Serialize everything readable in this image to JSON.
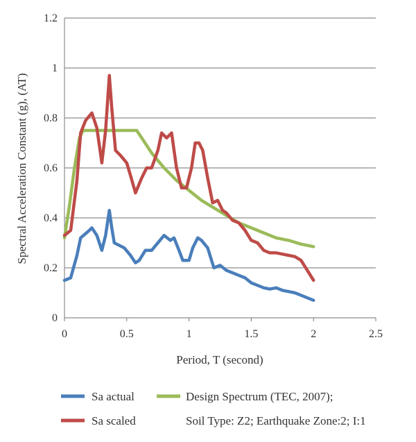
{
  "chart_data": {
    "type": "line",
    "title": "",
    "xlabel": "Period, T (second)",
    "ylabel": "Spectral Acceleration Constant (g), (AT)",
    "xlim": [
      0,
      2.5
    ],
    "ylim": [
      0,
      1.2
    ],
    "xticks": [
      0,
      0.5,
      1,
      1.5,
      2,
      2.5
    ],
    "xtick_labels": [
      "0",
      "0.5",
      "1",
      "1.5",
      "2",
      "2.5"
    ],
    "yticks": [
      0,
      0.2,
      0.4,
      0.6,
      0.8,
      1,
      1.2
    ],
    "ytick_labels": [
      "0",
      "0.2",
      "0.4",
      "0.6",
      "0.8",
      "1",
      "1.2"
    ],
    "grid": "horizontal",
    "legend_extra_text": "Soil Type: Z2; Earthquake Zone:2; I:1",
    "series": [
      {
        "name": "Sa actual",
        "color": "#4a7ebb",
        "points": [
          [
            0,
            0.15
          ],
          [
            0.05,
            0.16
          ],
          [
            0.1,
            0.25
          ],
          [
            0.13,
            0.32
          ],
          [
            0.2,
            0.35
          ],
          [
            0.22,
            0.36
          ],
          [
            0.26,
            0.33
          ],
          [
            0.3,
            0.27
          ],
          [
            0.33,
            0.33
          ],
          [
            0.36,
            0.43
          ],
          [
            0.38,
            0.36
          ],
          [
            0.4,
            0.3
          ],
          [
            0.44,
            0.29
          ],
          [
            0.48,
            0.28
          ],
          [
            0.53,
            0.25
          ],
          [
            0.57,
            0.22
          ],
          [
            0.6,
            0.23
          ],
          [
            0.65,
            0.27
          ],
          [
            0.7,
            0.27
          ],
          [
            0.75,
            0.3
          ],
          [
            0.8,
            0.33
          ],
          [
            0.85,
            0.31
          ],
          [
            0.88,
            0.32
          ],
          [
            0.92,
            0.27
          ],
          [
            0.95,
            0.23
          ],
          [
            1.0,
            0.23
          ],
          [
            1.03,
            0.28
          ],
          [
            1.07,
            0.32
          ],
          [
            1.1,
            0.31
          ],
          [
            1.15,
            0.28
          ],
          [
            1.2,
            0.2
          ],
          [
            1.25,
            0.21
          ],
          [
            1.3,
            0.19
          ],
          [
            1.35,
            0.18
          ],
          [
            1.4,
            0.17
          ],
          [
            1.45,
            0.16
          ],
          [
            1.5,
            0.14
          ],
          [
            1.55,
            0.13
          ],
          [
            1.6,
            0.12
          ],
          [
            1.65,
            0.115
          ],
          [
            1.7,
            0.12
          ],
          [
            1.75,
            0.11
          ],
          [
            1.8,
            0.105
          ],
          [
            1.85,
            0.1
          ],
          [
            1.9,
            0.09
          ],
          [
            1.95,
            0.08
          ],
          [
            2.0,
            0.07
          ]
        ]
      },
      {
        "name": "Sa scaled",
        "color": "#be4b48",
        "points": [
          [
            0,
            0.33
          ],
          [
            0.05,
            0.35
          ],
          [
            0.1,
            0.55
          ],
          [
            0.13,
            0.74
          ],
          [
            0.17,
            0.79
          ],
          [
            0.22,
            0.82
          ],
          [
            0.26,
            0.76
          ],
          [
            0.3,
            0.62
          ],
          [
            0.33,
            0.75
          ],
          [
            0.36,
            0.97
          ],
          [
            0.38,
            0.84
          ],
          [
            0.41,
            0.67
          ],
          [
            0.45,
            0.65
          ],
          [
            0.5,
            0.62
          ],
          [
            0.53,
            0.57
          ],
          [
            0.57,
            0.5
          ],
          [
            0.62,
            0.56
          ],
          [
            0.66,
            0.6
          ],
          [
            0.7,
            0.6
          ],
          [
            0.75,
            0.67
          ],
          [
            0.78,
            0.74
          ],
          [
            0.82,
            0.72
          ],
          [
            0.86,
            0.74
          ],
          [
            0.9,
            0.6
          ],
          [
            0.94,
            0.52
          ],
          [
            0.98,
            0.52
          ],
          [
            1.02,
            0.6
          ],
          [
            1.05,
            0.7
          ],
          [
            1.08,
            0.7
          ],
          [
            1.11,
            0.67
          ],
          [
            1.15,
            0.56
          ],
          [
            1.19,
            0.46
          ],
          [
            1.23,
            0.47
          ],
          [
            1.27,
            0.43
          ],
          [
            1.3,
            0.42
          ],
          [
            1.35,
            0.39
          ],
          [
            1.4,
            0.38
          ],
          [
            1.45,
            0.35
          ],
          [
            1.5,
            0.31
          ],
          [
            1.55,
            0.3
          ],
          [
            1.6,
            0.27
          ],
          [
            1.65,
            0.26
          ],
          [
            1.7,
            0.26
          ],
          [
            1.75,
            0.255
          ],
          [
            1.8,
            0.25
          ],
          [
            1.85,
            0.245
          ],
          [
            1.9,
            0.23
          ],
          [
            1.95,
            0.19
          ],
          [
            2.0,
            0.15
          ]
        ]
      },
      {
        "name": "Design Spectrum (TEC, 2007);",
        "color": "#9bbb59",
        "points": [
          [
            0,
            0.32
          ],
          [
            0.04,
            0.45
          ],
          [
            0.08,
            0.6
          ],
          [
            0.12,
            0.72
          ],
          [
            0.15,
            0.75
          ],
          [
            0.2,
            0.75
          ],
          [
            0.3,
            0.75
          ],
          [
            0.4,
            0.75
          ],
          [
            0.5,
            0.75
          ],
          [
            0.58,
            0.75
          ],
          [
            0.62,
            0.72
          ],
          [
            0.7,
            0.66
          ],
          [
            0.8,
            0.6
          ],
          [
            0.9,
            0.55
          ],
          [
            1.0,
            0.51
          ],
          [
            1.1,
            0.47
          ],
          [
            1.2,
            0.44
          ],
          [
            1.3,
            0.41
          ],
          [
            1.4,
            0.38
          ],
          [
            1.5,
            0.36
          ],
          [
            1.6,
            0.34
          ],
          [
            1.7,
            0.32
          ],
          [
            1.8,
            0.31
          ],
          [
            1.9,
            0.295
          ],
          [
            2.0,
            0.285
          ]
        ]
      }
    ]
  }
}
